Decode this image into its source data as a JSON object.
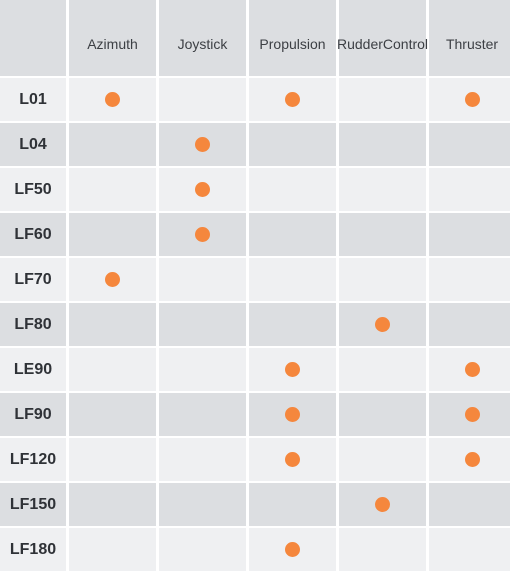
{
  "table": {
    "columns": [
      {
        "label": "Azimuth"
      },
      {
        "label": "Joystick"
      },
      {
        "label": "Propulsion"
      },
      {
        "label": "Rudder\nControl"
      },
      {
        "label": "Thruster"
      }
    ],
    "rows": [
      {
        "model": "L01",
        "features": [
          true,
          false,
          true,
          false,
          true
        ]
      },
      {
        "model": "L04",
        "features": [
          false,
          true,
          false,
          false,
          false
        ]
      },
      {
        "model": "LF50",
        "features": [
          false,
          true,
          false,
          false,
          false
        ]
      },
      {
        "model": "LF60",
        "features": [
          false,
          true,
          false,
          false,
          false
        ]
      },
      {
        "model": "LF70",
        "features": [
          true,
          false,
          false,
          false,
          false
        ]
      },
      {
        "model": "LF80",
        "features": [
          false,
          false,
          false,
          true,
          false
        ]
      },
      {
        "model": "LE90",
        "features": [
          false,
          false,
          true,
          false,
          true
        ]
      },
      {
        "model": "LF90",
        "features": [
          false,
          false,
          true,
          false,
          true
        ]
      },
      {
        "model": "LF120",
        "features": [
          false,
          false,
          true,
          false,
          true
        ]
      },
      {
        "model": "LF150",
        "features": [
          false,
          false,
          false,
          true,
          false
        ]
      },
      {
        "model": "LF180",
        "features": [
          false,
          false,
          true,
          false,
          false
        ]
      }
    ]
  },
  "colors": {
    "dot": "#f5873d",
    "row_light": "#eff0f2",
    "row_dark": "#dcdee1",
    "header_bg": "#dcdee1",
    "text": "#2f3237"
  },
  "icons": {
    "feature_marker": "filled-circle-icon"
  }
}
